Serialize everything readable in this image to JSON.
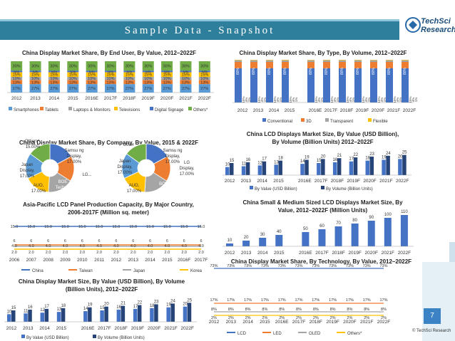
{
  "header": {
    "title": "Sample Data - Snapshot",
    "logo_line1": "TechSci",
    "logo_line2": "Research"
  },
  "page_number": "7",
  "copyright": "© TechSci Research",
  "colors": {
    "header": "#2e7f9c",
    "blue": "#4472c4",
    "orange": "#ed7d31",
    "gray": "#a5a5a5",
    "yellow": "#ffc000",
    "lightblue": "#5b9bd5",
    "green": "#70ad47",
    "darkblue": "#264478"
  },
  "chart_data": [
    {
      "id": "end_user",
      "type": "bar",
      "stacked": true,
      "title": "China Display Market Share, By End User, By Value, 2012–2022F",
      "categories": [
        "2012",
        "2013",
        "2014",
        "2015",
        "2016E",
        "2017F",
        "2018F",
        "2019F",
        "2020F",
        "2021F",
        "2022F"
      ],
      "series": [
        {
          "name": "Smartphones",
          "values": [
            27,
            27,
            27,
            27,
            27,
            27,
            27,
            27,
            27,
            27,
            27
          ]
        },
        {
          "name": "Tablets",
          "values": [
            13,
            13,
            13,
            13,
            13,
            13,
            13,
            13,
            13,
            13,
            13
          ]
        },
        {
          "name": "Laptops & Monitors",
          "values": [
            10,
            10,
            10,
            10,
            10,
            10,
            10,
            10,
            10,
            10,
            10
          ]
        },
        {
          "name": "Televisions",
          "values": [
            15,
            15,
            15,
            15,
            15,
            15,
            15,
            15,
            15,
            15,
            15
          ]
        },
        {
          "name": "Digital Signage",
          "values": [
            5,
            5,
            5,
            5,
            5,
            5,
            5,
            5,
            5,
            5,
            5
          ]
        },
        {
          "name": "Others*",
          "values": [
            30,
            30,
            30,
            30,
            30,
            30,
            30,
            30,
            30,
            30,
            30
          ]
        }
      ],
      "value_suffix": "%"
    },
    {
      "id": "by_type",
      "type": "bar",
      "stacked": true,
      "title": "China Display Market Share, By Type, By Volume, 2012–2022F",
      "categories": [
        "2012",
        "2013",
        "2014",
        "2015",
        "2016E",
        "2017F",
        "2018F",
        "2019F",
        "2020F",
        "2021F",
        "2022F"
      ],
      "series": [
        {
          "name": "Conventional",
          "values": [
            80,
            80,
            80,
            80,
            80,
            80,
            80,
            80,
            80,
            80,
            80
          ]
        },
        {
          "name": "3D",
          "values": [
            15,
            15,
            15,
            15,
            15,
            15,
            15,
            15,
            15,
            15,
            15
          ]
        },
        {
          "name": "Transparent",
          "values": [
            4,
            4,
            4,
            4,
            4,
            4,
            4,
            4,
            4,
            4,
            4
          ]
        },
        {
          "name": "Flexible",
          "values": [
            1,
            1,
            1,
            1,
            1,
            1,
            1,
            1,
            1,
            1,
            1
          ]
        }
      ],
      "value_suffix": "%"
    },
    {
      "id": "company_2015",
      "type": "pie",
      "title": "China Display Market Share, By Company, By Value, 2015 & 2022F",
      "center_label": "2015",
      "slices": [
        {
          "name": "Samsung Display",
          "value": 17.0,
          "label": "Samsu ng Display, 17.00%"
        },
        {
          "name": "LG",
          "value": 17.0,
          "label": "LG..."
        },
        {
          "name": "BOE Technology",
          "value": 17.0,
          "label": "BOE Technol ogy, 17.00%"
        },
        {
          "name": "AUO",
          "value": 17.0,
          "label": "AUO, 17.00%"
        },
        {
          "name": "Japan Display",
          "value": 17.0,
          "label": "Japan Display, 17.00%"
        },
        {
          "name": "Others*",
          "value": 15.0,
          "label": "Others*, 15.00%"
        }
      ]
    },
    {
      "id": "company_2022",
      "type": "pie",
      "center_label": "2022",
      "slices": [
        {
          "name": "Samsung Display",
          "value": 17.0,
          "label": "Samsu ng Display, 17.00%"
        },
        {
          "name": "LG Display",
          "value": 17.0,
          "label": "LG Display, 17.00%"
        },
        {
          "name": "BOE",
          "value": 17.0,
          "label": "BOE..."
        },
        {
          "name": "AUO",
          "value": 17.0,
          "label": "AUO, 17.00%"
        },
        {
          "name": "Japan Display",
          "value": 17.0,
          "label": "Japan Display, 17.00%"
        },
        {
          "name": "Other",
          "value": 15.0,
          "label": "Other"
        }
      ]
    },
    {
      "id": "lcd_size",
      "type": "bar",
      "title": "China LCD Displays Market Size, By Value (USD Billion), By Volume (Billion Units) 2012–2022F",
      "categories": [
        "2012",
        "2013",
        "2014",
        "2015",
        "2016E",
        "2017F",
        "2018F",
        "2019F",
        "2020F",
        "2021F",
        "2022F"
      ],
      "series": [
        {
          "name": "By Value (USD Billion)",
          "values": [
            10,
            11,
            12,
            13,
            14,
            15,
            16,
            17,
            18,
            19,
            20
          ]
        },
        {
          "name": "By Volume (Billion Units)",
          "values": [
            15,
            16,
            17,
            18,
            19,
            20,
            21,
            22,
            23,
            24,
            25
          ]
        }
      ]
    },
    {
      "id": "apac_capacity",
      "type": "line",
      "title": "Asia-Pacific LCD Panel Production Capacity, By Major Country, 2006-2017F (Million sq. meter)",
      "categories": [
        "2006",
        "2007",
        "2008",
        "2009",
        "2010",
        "2011",
        "2012",
        "2013",
        "2014",
        "2015",
        "2016F",
        "2017F"
      ],
      "series": [
        {
          "name": "China",
          "values": [
            15.0,
            15.0,
            15.0,
            15.0,
            15.0,
            15.0,
            15.0,
            15.0,
            15.0,
            15.0,
            15.0,
            15.0
          ]
        },
        {
          "name": "Taiwan",
          "values": [
            6,
            6,
            6,
            6,
            6,
            6,
            6,
            6,
            6,
            6,
            6,
            6
          ]
        },
        {
          "name": "Japan",
          "values": [
            4.0,
            4.0,
            4.0,
            4.0,
            4.0,
            4.0,
            4.0,
            4.0,
            4.0,
            4.0,
            4.0,
            4.0
          ]
        },
        {
          "name": "Korea",
          "values": [
            2.0,
            2.0,
            2.0,
            2.0,
            2.0,
            2.0,
            2.0,
            2.0,
            2.0,
            2.0,
            2.0,
            2.0
          ]
        }
      ]
    },
    {
      "id": "small_medium",
      "type": "bar",
      "title": "China Small & Medium Sized LCD Displays Market Size, By Value, 2012–2022F (Million Units)",
      "categories": [
        "2012",
        "2013",
        "2014",
        "2015",
        "2016E",
        "2017F",
        "2018F",
        "2019F",
        "2020F",
        "2021F",
        "2022F"
      ],
      "values": [
        10,
        20,
        30,
        40,
        50,
        60,
        70,
        80,
        90,
        100,
        110
      ]
    },
    {
      "id": "display_size",
      "type": "bar",
      "title": "China Display Market Size, By Value (USD Billion), By Volume (Billion Units), 2012–2022F",
      "categories": [
        "2012",
        "2013",
        "2014",
        "2015",
        "2016E",
        "2017F",
        "2018F",
        "2019F",
        "2020F",
        "2021F",
        "2022F"
      ],
      "series": [
        {
          "name": "By Value (USD Billion)",
          "values": [
            10,
            11,
            12,
            13,
            14,
            15,
            16,
            17,
            18,
            19,
            20
          ]
        },
        {
          "name": "By Volume (Billion Units)",
          "values": [
            15,
            16,
            17,
            18,
            19,
            20,
            21,
            22,
            23,
            24,
            25
          ]
        }
      ]
    },
    {
      "id": "technology",
      "type": "line",
      "title": "China Display Market Share, By Technology, By Value, 2012–2022F",
      "categories": [
        "2012",
        "2013",
        "2014",
        "2015",
        "2016E",
        "2017F",
        "2018F",
        "2019F",
        "2020F",
        "2021F",
        "2022F"
      ],
      "series": [
        {
          "name": "LCD",
          "values": [
            73,
            73,
            73,
            73,
            73,
            73,
            73,
            73,
            73,
            73,
            73
          ]
        },
        {
          "name": "LED",
          "values": [
            17,
            17,
            17,
            17,
            17,
            17,
            17,
            17,
            17,
            17,
            17
          ]
        },
        {
          "name": "OLED",
          "values": [
            8,
            8,
            8,
            8,
            8,
            8,
            8,
            8,
            8,
            8,
            8
          ]
        },
        {
          "name": "Others*",
          "values": [
            2,
            2,
            2,
            2,
            2,
            2,
            2,
            2,
            2,
            2,
            2
          ]
        }
      ],
      "value_suffix": "%"
    }
  ]
}
